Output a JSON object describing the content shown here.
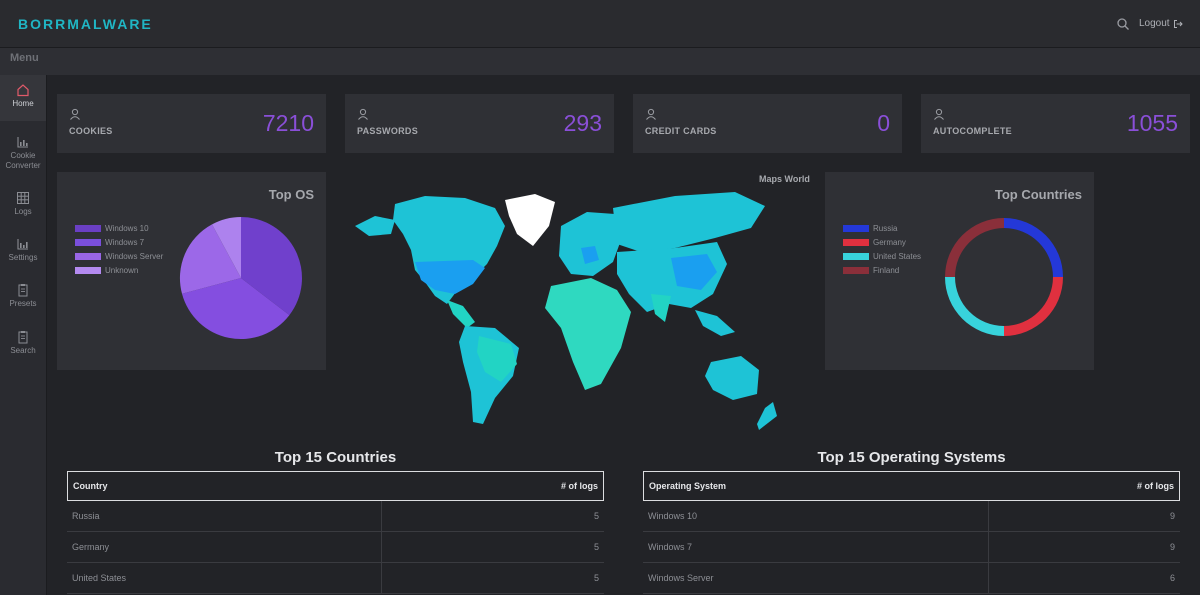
{
  "app": {
    "brand": "BORRMALWARE",
    "logout_label": "Logout",
    "menu_label": "Menu"
  },
  "sidebar": {
    "items": [
      {
        "label": "Home",
        "icon": "home-icon",
        "active": true
      },
      {
        "label": "Cookie Converter",
        "icon": "bar-chart-icon",
        "active": false
      },
      {
        "label": "Logs",
        "icon": "grid-icon",
        "active": false
      },
      {
        "label": "Settings",
        "icon": "bar-chart-icon",
        "active": false
      },
      {
        "label": "Presets",
        "icon": "clipboard-icon",
        "active": false
      },
      {
        "label": "Search",
        "icon": "clipboard-icon",
        "active": false
      }
    ]
  },
  "stats": [
    {
      "label": "COOKIES",
      "value": "7210",
      "icon": "user-icon"
    },
    {
      "label": "PASSWORDS",
      "value": "293",
      "icon": "user-icon"
    },
    {
      "label": "CREDIT CARDS",
      "value": "0",
      "icon": "user-icon"
    },
    {
      "label": "AUTOCOMPLETE",
      "value": "1055",
      "icon": "user-icon"
    }
  ],
  "top_os": {
    "title": "Top OS",
    "legend": [
      {
        "name": "Windows 10",
        "color": "#6a3fc4"
      },
      {
        "name": "Windows 7",
        "color": "#7a4fdc"
      },
      {
        "name": "Windows Server",
        "color": "#9966e6"
      },
      {
        "name": "Unknown",
        "color": "#b48af0"
      }
    ]
  },
  "top_countries": {
    "title": "Top Countries",
    "legend": [
      {
        "name": "Russia",
        "color": "#2438d8"
      },
      {
        "name": "Germany",
        "color": "#e0303f"
      },
      {
        "name": "United States",
        "color": "#38d3dc"
      },
      {
        "name": "Finland",
        "color": "#8a2f3a"
      }
    ]
  },
  "map": {
    "title": "Maps World"
  },
  "countries_table": {
    "heading": "Top 15 Countries",
    "col1": "Country",
    "col2": "# of logs",
    "rows": [
      {
        "name": "Russia",
        "count": "5"
      },
      {
        "name": "Germany",
        "count": "5"
      },
      {
        "name": "United States",
        "count": "5"
      }
    ]
  },
  "os_table": {
    "heading": "Top 15 Operating Systems",
    "col1": "Operating System",
    "col2": "# of logs",
    "rows": [
      {
        "name": "Windows 10",
        "count": "9"
      },
      {
        "name": "Windows 7",
        "count": "9"
      },
      {
        "name": "Windows Server",
        "count": "6"
      }
    ]
  }
}
